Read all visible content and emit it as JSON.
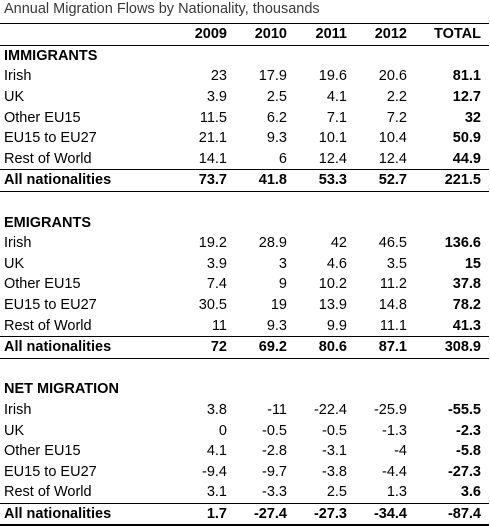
{
  "chart_data": {
    "type": "table",
    "title": "Annual Migration Flows by Nationality, thousands",
    "columns": [
      "",
      "2009",
      "2010",
      "2011",
      "2012",
      "TOTAL"
    ],
    "sections": [
      {
        "name": "IMMIGRANTS",
        "rows": [
          {
            "label": "Irish",
            "values": [
              "23",
              "17.9",
              "19.6",
              "20.6"
            ],
            "total": "81.1"
          },
          {
            "label": "UK",
            "values": [
              "3.9",
              "2.5",
              "4.1",
              "2.2"
            ],
            "total": "12.7"
          },
          {
            "label": "Other EU15",
            "values": [
              "11.5",
              "6.2",
              "7.1",
              "7.2"
            ],
            "total": "32"
          },
          {
            "label": "EU15 to EU27",
            "values": [
              "21.1",
              "9.3",
              "10.1",
              "10.4"
            ],
            "total": "50.9"
          },
          {
            "label": "Rest of World",
            "values": [
              "14.1",
              "6",
              "12.4",
              "12.4"
            ],
            "total": "44.9"
          }
        ],
        "all": {
          "label": "All nationalities",
          "values": [
            "73.7",
            "41.8",
            "53.3",
            "52.7"
          ],
          "total": "221.5"
        }
      },
      {
        "name": "EMIGRANTS",
        "rows": [
          {
            "label": "Irish",
            "values": [
              "19.2",
              "28.9",
              "42",
              "46.5"
            ],
            "total": "136.6"
          },
          {
            "label": "UK",
            "values": [
              "3.9",
              "3",
              "4.6",
              "3.5"
            ],
            "total": "15"
          },
          {
            "label": "Other EU15",
            "values": [
              "7.4",
              "9",
              "10.2",
              "11.2"
            ],
            "total": "37.8"
          },
          {
            "label": "EU15 to EU27",
            "values": [
              "30.5",
              "19",
              "13.9",
              "14.8"
            ],
            "total": "78.2"
          },
          {
            "label": "Rest of World",
            "values": [
              "11",
              "9.3",
              "9.9",
              "11.1"
            ],
            "total": "41.3"
          }
        ],
        "all": {
          "label": "All nationalities",
          "values": [
            "72",
            "69.2",
            "80.6",
            "87.1"
          ],
          "total": "308.9"
        }
      },
      {
        "name": "NET MIGRATION",
        "rows": [
          {
            "label": "Irish",
            "values": [
              "3.8",
              "-11",
              "-22.4",
              "-25.9"
            ],
            "total": "-55.5"
          },
          {
            "label": "UK",
            "values": [
              "0",
              "-0.5",
              "-0.5",
              "-1.3"
            ],
            "total": "-2.3"
          },
          {
            "label": "Other EU15",
            "values": [
              "4.1",
              "-2.8",
              "-3.1",
              "-4"
            ],
            "total": "-5.8"
          },
          {
            "label": "EU15 to EU27",
            "values": [
              "-9.4",
              "-9.7",
              "-3.8",
              "-4.4"
            ],
            "total": "-27.3"
          },
          {
            "label": "Rest of World",
            "values": [
              "3.1",
              "-3.3",
              "2.5",
              "1.3"
            ],
            "total": "3.6"
          }
        ],
        "all": {
          "label": "All nationalities",
          "values": [
            "1.7",
            "-27.4",
            "-27.3",
            "-34.4"
          ],
          "total": "-87.4"
        }
      }
    ]
  }
}
